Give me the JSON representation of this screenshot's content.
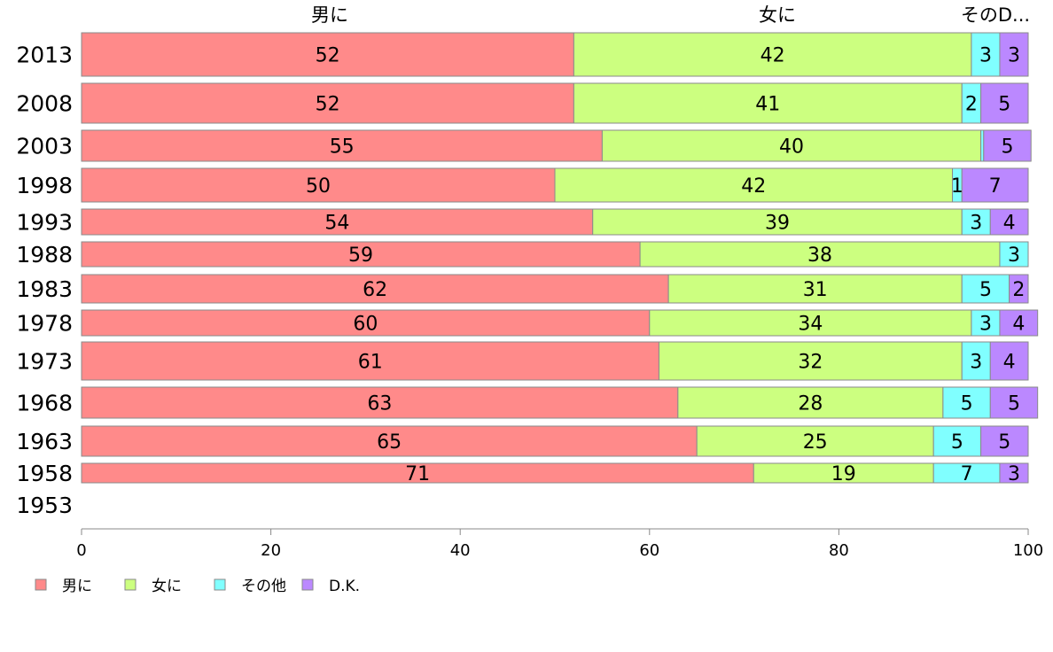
{
  "chart_data": {
    "type": "bar",
    "orientation": "horizontal",
    "stacked": true,
    "categories": [
      "2013",
      "2008",
      "2003",
      "1998",
      "1993",
      "1988",
      "1983",
      "1978",
      "1973",
      "1968",
      "1963",
      "1958",
      "1953"
    ],
    "series": [
      {
        "name": "男に",
        "color": "#ff8a8a",
        "values": [
          52,
          52,
          55,
          50,
          54,
          59,
          62,
          60,
          61,
          63,
          65,
          71,
          null
        ]
      },
      {
        "name": "女に",
        "color": "#ccff80",
        "values": [
          42,
          41,
          40,
          42,
          39,
          38,
          31,
          34,
          32,
          28,
          25,
          19,
          null
        ]
      },
      {
        "name": "その他",
        "color": "#80ffff",
        "values": [
          3,
          2,
          0.3,
          1,
          3,
          3,
          5,
          3,
          3,
          5,
          5,
          7,
          null
        ]
      },
      {
        "name": "D.K.",
        "color": "#bb88ff",
        "values": [
          3,
          5,
          5,
          7,
          4,
          0,
          2,
          4,
          4,
          5,
          5,
          3,
          null
        ]
      }
    ],
    "column_headers": [
      "男に",
      "女に",
      "そのD..."
    ],
    "xlim": [
      0,
      100
    ],
    "xticks": [
      "0",
      "20",
      "40",
      "60",
      "80",
      "100"
    ],
    "legend_position": "bottom-left",
    "grid": false
  }
}
